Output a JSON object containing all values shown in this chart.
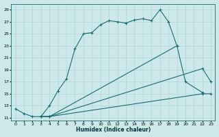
{
  "xlabel": "Humidex (Indice chaleur)",
  "ylabel": "",
  "bg_color": "#cce8ea",
  "grid_color": "#b0d4d8",
  "line_color": "#1a6b6b",
  "xlim": [
    -0.5,
    23.5
  ],
  "ylim": [
    10.5,
    30.0
  ],
  "xticks": [
    0,
    1,
    2,
    3,
    4,
    5,
    6,
    7,
    8,
    9,
    10,
    11,
    12,
    13,
    14,
    15,
    16,
    17,
    18,
    19,
    20,
    21,
    22,
    23
  ],
  "yticks": [
    11,
    13,
    15,
    17,
    19,
    21,
    23,
    25,
    27,
    29
  ],
  "line1_x": [
    0,
    1,
    2,
    3,
    4,
    5,
    6,
    7,
    8,
    9,
    10,
    11,
    12,
    13,
    14,
    15,
    16,
    17,
    18,
    19
  ],
  "line1_y": [
    12.5,
    11.7,
    11.2,
    11.2,
    13.0,
    15.5,
    17.5,
    22.5,
    25.0,
    25.2,
    26.5,
    27.2,
    27.0,
    26.8,
    27.3,
    27.5,
    27.2,
    29.0,
    27.0,
    23.0
  ],
  "line2_x": [
    3,
    4,
    19,
    20,
    22
  ],
  "line2_y": [
    11.2,
    11.2,
    23.0,
    17.0,
    15.2
  ],
  "line3_x": [
    3,
    4,
    22,
    23
  ],
  "line3_y": [
    11.2,
    11.2,
    19.2,
    17.0
  ],
  "line4_x": [
    3,
    4,
    22,
    23
  ],
  "line4_y": [
    11.2,
    11.2,
    15.0,
    15.0
  ]
}
